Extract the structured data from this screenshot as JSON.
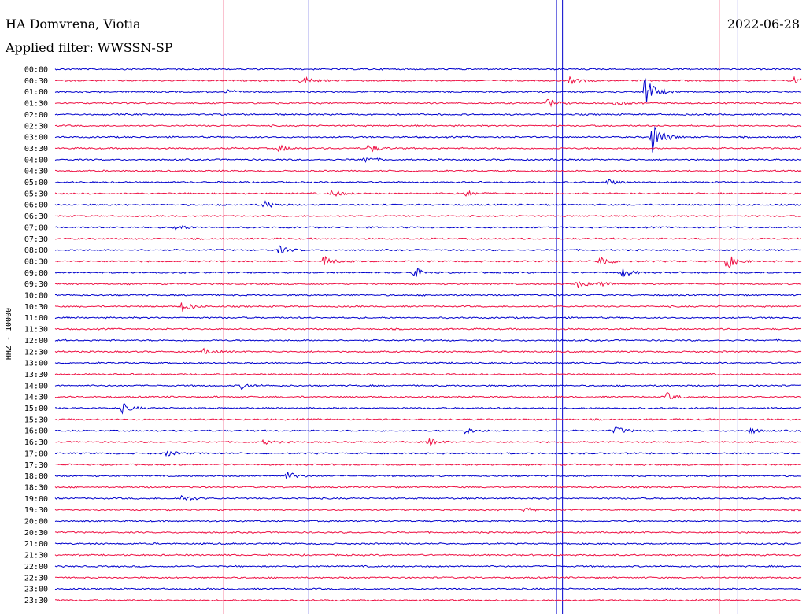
{
  "header": {
    "station": "HA Domvrena, Viotia",
    "filter": "Applied filter: WWSSN-SP",
    "date": "2022-06-28"
  },
  "chart_data": {
    "type": "line",
    "title": "HA Domvrena, Viotia",
    "channel_label": "HHZ - 10000",
    "rows": [
      "00:00",
      "00:30",
      "01:00",
      "01:30",
      "02:00",
      "02:30",
      "03:00",
      "03:30",
      "04:00",
      "04:30",
      "05:00",
      "05:30",
      "06:00",
      "06:30",
      "07:00",
      "07:30",
      "08:00",
      "08:30",
      "09:00",
      "09:30",
      "10:00",
      "10:30",
      "11:00",
      "11:30",
      "12:00",
      "12:30",
      "13:00",
      "13:30",
      "14:00",
      "14:30",
      "15:00",
      "15:30",
      "16:00",
      "16:30",
      "17:00",
      "17:30",
      "18:00",
      "18:30",
      "19:00",
      "19:30",
      "20:00",
      "20:30",
      "21:00",
      "21:30",
      "22:00",
      "22:30",
      "23:00",
      "23:30"
    ],
    "colors": {
      "even_rows": "#0000cc",
      "odd_rows": "#ee1144"
    },
    "events": [
      {
        "row": 1,
        "pos": 0.33,
        "amp": 7
      },
      {
        "row": 1,
        "pos": 0.69,
        "amp": 4
      },
      {
        "row": 1,
        "pos": 0.99,
        "amp": 6
      },
      {
        "row": 2,
        "pos": 0.23,
        "amp": 3
      },
      {
        "row": 2,
        "pos": 0.79,
        "amp": 22
      },
      {
        "row": 3,
        "pos": 0.66,
        "amp": 5
      },
      {
        "row": 3,
        "pos": 0.75,
        "amp": 3
      },
      {
        "row": 6,
        "pos": 0.8,
        "amp": 22
      },
      {
        "row": 7,
        "pos": 0.3,
        "amp": 4
      },
      {
        "row": 7,
        "pos": 0.42,
        "amp": 6
      },
      {
        "row": 8,
        "pos": 0.41,
        "amp": 6
      },
      {
        "row": 10,
        "pos": 0.74,
        "amp": 4
      },
      {
        "row": 11,
        "pos": 0.37,
        "amp": 5
      },
      {
        "row": 11,
        "pos": 0.55,
        "amp": 4
      },
      {
        "row": 12,
        "pos": 0.28,
        "amp": 5
      },
      {
        "row": 14,
        "pos": 0.16,
        "amp": 5
      },
      {
        "row": 16,
        "pos": 0.3,
        "amp": 5
      },
      {
        "row": 17,
        "pos": 0.36,
        "amp": 7
      },
      {
        "row": 17,
        "pos": 0.73,
        "amp": 8
      },
      {
        "row": 17,
        "pos": 0.9,
        "amp": 10
      },
      {
        "row": 18,
        "pos": 0.48,
        "amp": 7
      },
      {
        "row": 18,
        "pos": 0.76,
        "amp": 6
      },
      {
        "row": 19,
        "pos": 0.7,
        "amp": 5
      },
      {
        "row": 19,
        "pos": 0.73,
        "amp": 4
      },
      {
        "row": 21,
        "pos": 0.17,
        "amp": 7
      },
      {
        "row": 25,
        "pos": 0.2,
        "amp": 4
      },
      {
        "row": 28,
        "pos": 0.25,
        "amp": 4
      },
      {
        "row": 29,
        "pos": 0.82,
        "amp": 5
      },
      {
        "row": 30,
        "pos": 0.09,
        "amp": 6
      },
      {
        "row": 32,
        "pos": 0.55,
        "amp": 4
      },
      {
        "row": 32,
        "pos": 0.75,
        "amp": 6
      },
      {
        "row": 32,
        "pos": 0.93,
        "amp": 4
      },
      {
        "row": 33,
        "pos": 0.28,
        "amp": 3
      },
      {
        "row": 33,
        "pos": 0.5,
        "amp": 5
      },
      {
        "row": 34,
        "pos": 0.15,
        "amp": 4
      },
      {
        "row": 36,
        "pos": 0.31,
        "amp": 6
      },
      {
        "row": 38,
        "pos": 0.17,
        "amp": 5
      },
      {
        "row": 39,
        "pos": 0.63,
        "amp": 3
      }
    ],
    "glitches": [
      {
        "pos": 0.226,
        "color": "#ee1144"
      },
      {
        "pos": 0.34,
        "color": "#0000cc"
      },
      {
        "pos": 0.672,
        "color": "#0000cc"
      },
      {
        "pos": 0.68,
        "color": "#0000cc"
      },
      {
        "pos": 0.89,
        "color": "#ee1144"
      },
      {
        "pos": 0.915,
        "color": "#0000cc"
      }
    ]
  }
}
